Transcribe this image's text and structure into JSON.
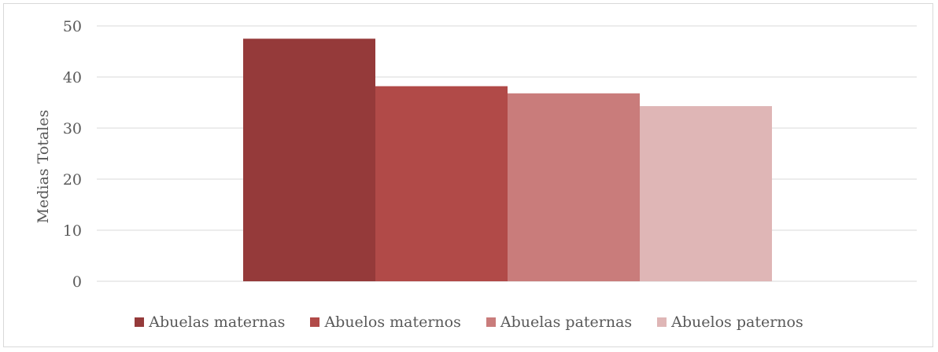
{
  "chart_data": {
    "type": "bar",
    "ylabel": "Medias Totales",
    "ylim": [
      0,
      50
    ],
    "yticks": [
      0,
      10,
      20,
      30,
      40,
      50
    ],
    "grid": true,
    "legend_position": "bottom",
    "series": [
      {
        "name": "Abuelas maternas",
        "values": [
          47.5
        ],
        "color": "#953A3A"
      },
      {
        "name": "Abuelos maternos",
        "values": [
          38.2
        ],
        "color": "#B14A48"
      },
      {
        "name": "Abuelas paternas",
        "values": [
          36.8
        ],
        "color": "#C97C7B"
      },
      {
        "name": "Abuelos paternos",
        "values": [
          34.3
        ],
        "color": "#DFB6B6"
      }
    ]
  }
}
